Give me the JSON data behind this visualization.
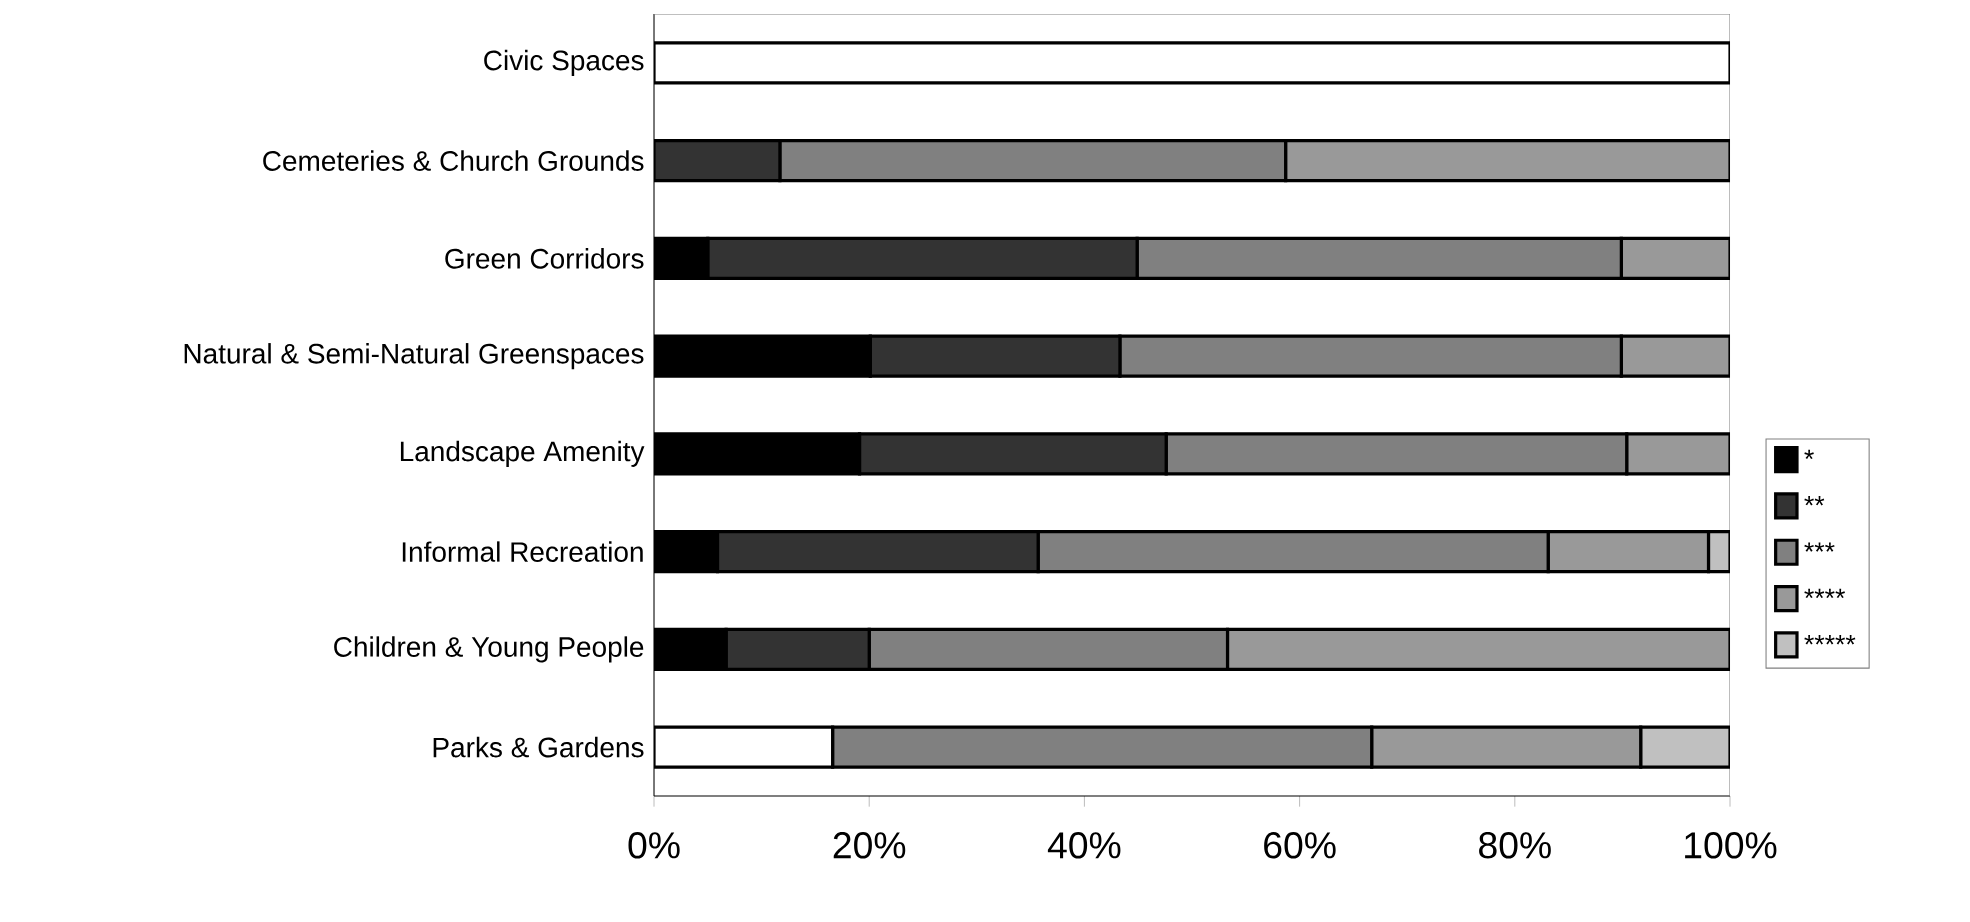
{
  "chart_data": {
    "type": "bar",
    "orientation": "horizontal",
    "stacked": true,
    "categories": [
      "Civic Spaces",
      "Cemeteries & Church Grounds",
      "Green Corridors",
      "Natural & Semi-Natural Greenspaces",
      "Landscape Amenity",
      "Informal Recreation",
      "Children & Young People",
      "Parks & Gardens"
    ],
    "series": [
      {
        "color": "#ffffff",
        "values": [
          100,
          0,
          0,
          0,
          0,
          0,
          0,
          16.6
        ]
      },
      {
        "name": "*",
        "color": "#000000",
        "values": [
          0,
          0,
          5.0,
          20.1,
          19.1,
          5.9,
          6.7,
          0
        ]
      },
      {
        "name": "**",
        "color": "#333333",
        "values": [
          0,
          11.7,
          39.9,
          23.2,
          28.5,
          29.8,
          13.3,
          0
        ]
      },
      {
        "name": "***",
        "color": "#808080",
        "values": [
          0,
          47.0,
          45.0,
          46.6,
          42.8,
          47.4,
          33.3,
          50.1
        ]
      },
      {
        "name": "****",
        "color": "#999999",
        "values": [
          0,
          41.3,
          10.1,
          10.1,
          9.6,
          14.9,
          46.7,
          25.0
        ]
      },
      {
        "name": "*****",
        "color": "#c0c0c0",
        "values": [
          0,
          0,
          0,
          0,
          0,
          2.0,
          0,
          8.3
        ]
      }
    ],
    "xlim": [
      0,
      100
    ],
    "xticks": [
      {
        "value": 0,
        "label": "0%"
      },
      {
        "value": 20,
        "label": "20%"
      },
      {
        "value": 40,
        "label": "40%"
      },
      {
        "value": 60,
        "label": "60%"
      },
      {
        "value": 80,
        "label": "80%"
      },
      {
        "value": 100,
        "label": "100%"
      }
    ],
    "legend": "right"
  }
}
